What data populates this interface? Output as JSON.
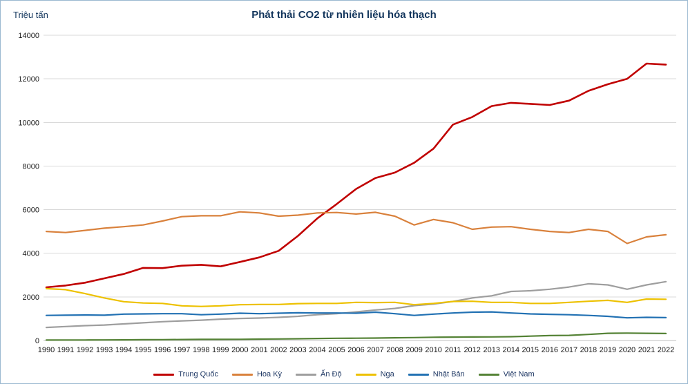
{
  "chart": {
    "title": "Phát thải CO2 từ nhiên liệu hóa thạch",
    "unit_label": "Triệu tấn"
  },
  "chart_data": {
    "type": "line",
    "title": "Phát thải CO2 từ nhiên liệu hóa thạch",
    "ylabel": "Triệu tấn",
    "xlabel": "",
    "ylim": [
      0,
      14000
    ],
    "ytick_step": 2000,
    "grid": true,
    "legend_position": "bottom",
    "x": [
      1990,
      1991,
      1992,
      1993,
      1994,
      1995,
      1996,
      1997,
      1998,
      1999,
      2000,
      2001,
      2002,
      2003,
      2004,
      2005,
      2006,
      2007,
      2008,
      2009,
      2010,
      2011,
      2012,
      2013,
      2014,
      2015,
      2016,
      2017,
      2018,
      2019,
      2020,
      2021,
      2022
    ],
    "series": [
      {
        "name": "Trung Quốc",
        "color": "#C00000",
        "values": [
          2440,
          2520,
          2650,
          2850,
          3050,
          3330,
          3320,
          3430,
          3470,
          3400,
          3600,
          3810,
          4110,
          4800,
          5600,
          6260,
          6950,
          7450,
          7700,
          8150,
          8800,
          9900,
          10250,
          10750,
          10900,
          10850,
          10800,
          11000,
          11450,
          11750,
          12000,
          12700,
          12650
        ]
      },
      {
        "name": "Hoa Kỳ",
        "color": "#D9813C",
        "values": [
          5000,
          4950,
          5050,
          5150,
          5220,
          5300,
          5480,
          5680,
          5720,
          5720,
          5900,
          5850,
          5700,
          5750,
          5850,
          5870,
          5800,
          5880,
          5700,
          5300,
          5550,
          5400,
          5100,
          5200,
          5220,
          5100,
          5000,
          4950,
          5100,
          5000,
          4450,
          4750,
          4850
        ]
      },
      {
        "name": "Ấn Độ",
        "color": "#9E9E9E",
        "values": [
          600,
          640,
          680,
          710,
          760,
          810,
          860,
          900,
          930,
          980,
          1010,
          1030,
          1060,
          1110,
          1180,
          1230,
          1310,
          1400,
          1470,
          1600,
          1670,
          1790,
          1950,
          2050,
          2250,
          2280,
          2350,
          2450,
          2600,
          2550,
          2350,
          2550,
          2700
        ]
      },
      {
        "name": "Nga",
        "color": "#EDC100",
        "values": [
          2380,
          2330,
          2150,
          1950,
          1780,
          1720,
          1700,
          1590,
          1560,
          1590,
          1640,
          1650,
          1650,
          1690,
          1700,
          1700,
          1750,
          1740,
          1750,
          1640,
          1700,
          1790,
          1800,
          1750,
          1750,
          1700,
          1700,
          1750,
          1800,
          1840,
          1750,
          1900,
          1890
        ]
      },
      {
        "name": "Nhật Bản",
        "color": "#2271B3",
        "values": [
          1150,
          1160,
          1170,
          1160,
          1210,
          1220,
          1230,
          1230,
          1180,
          1210,
          1250,
          1230,
          1250,
          1270,
          1260,
          1260,
          1250,
          1300,
          1230,
          1150,
          1210,
          1260,
          1300,
          1310,
          1260,
          1220,
          1200,
          1180,
          1150,
          1110,
          1040,
          1060,
          1050
        ]
      },
      {
        "name": "Việt Nam",
        "color": "#548235",
        "values": [
          20,
          21,
          22,
          25,
          29,
          34,
          39,
          45,
          50,
          50,
          55,
          62,
          70,
          80,
          92,
          100,
          106,
          112,
          122,
          132,
          150,
          155,
          160,
          165,
          175,
          200,
          225,
          235,
          280,
          330,
          340,
          330,
          320
        ]
      }
    ]
  }
}
